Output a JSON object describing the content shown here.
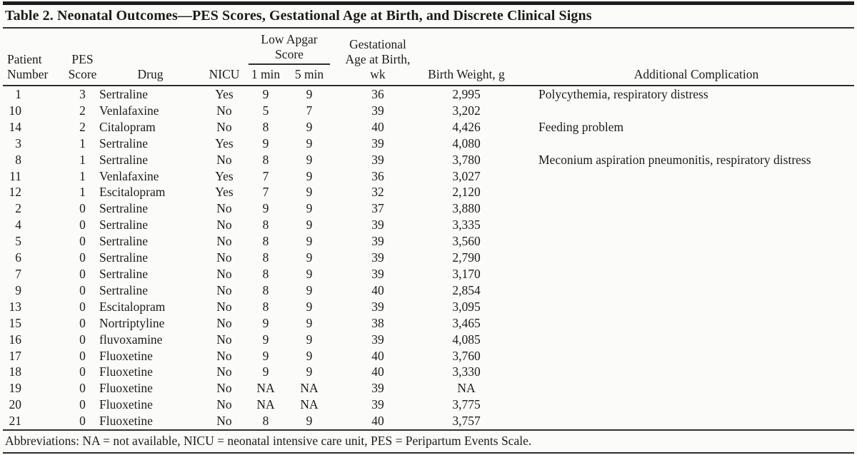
{
  "title": "Table 2. Neonatal Outcomes—PES Scores, Gestational Age at Birth, and Discrete Clinical Signs",
  "columns": {
    "patient": [
      "Patient",
      "Number"
    ],
    "pes": [
      "PES",
      "Score"
    ],
    "drug": "Drug",
    "nicu": "NICU",
    "apgar_group": [
      "Low Apgar",
      "Score"
    ],
    "apgar_1": "1 min",
    "apgar_5": "5 min",
    "ga": [
      "Gestational",
      "Age at Birth,",
      "wk"
    ],
    "weight": "Birth Weight, g",
    "complication": "Additional Complication"
  },
  "rows": [
    [
      "1",
      "3",
      "Sertraline",
      "Yes",
      "9",
      "9",
      "36",
      "2,995",
      "Polycythemia, respiratory distress"
    ],
    [
      "10",
      "2",
      "Venlafaxine",
      "No",
      "5",
      "7",
      "39",
      "3,202",
      ""
    ],
    [
      "14",
      "2",
      "Citalopram",
      "No",
      "8",
      "9",
      "40",
      "4,426",
      "Feeding problem"
    ],
    [
      "3",
      "1",
      "Sertraline",
      "Yes",
      "9",
      "9",
      "39",
      "4,080",
      ""
    ],
    [
      "8",
      "1",
      "Sertraline",
      "No",
      "8",
      "9",
      "39",
      "3,780",
      "Meconium aspiration pneumonitis, respiratory distress"
    ],
    [
      "11",
      "1",
      "Venlafaxine",
      "Yes",
      "7",
      "9",
      "36",
      "3,027",
      ""
    ],
    [
      "12",
      "1",
      "Escitalopram",
      "Yes",
      "7",
      "9",
      "32",
      "2,120",
      ""
    ],
    [
      "2",
      "0",
      "Sertraline",
      "No",
      "9",
      "9",
      "37",
      "3,880",
      ""
    ],
    [
      "4",
      "0",
      "Sertraline",
      "No",
      "8",
      "9",
      "39",
      "3,335",
      ""
    ],
    [
      "5",
      "0",
      "Sertraline",
      "No",
      "8",
      "9",
      "39",
      "3,560",
      ""
    ],
    [
      "6",
      "0",
      "Sertraline",
      "No",
      "8",
      "9",
      "39",
      "2,790",
      ""
    ],
    [
      "7",
      "0",
      "Sertraline",
      "No",
      "8",
      "9",
      "39",
      "3,170",
      ""
    ],
    [
      "9",
      "0",
      "Sertraline",
      "No",
      "8",
      "9",
      "40",
      "2,854",
      ""
    ],
    [
      "13",
      "0",
      "Escitalopram",
      "No",
      "8",
      "9",
      "39",
      "3,095",
      ""
    ],
    [
      "15",
      "0",
      "Nortriptyline",
      "No",
      "9",
      "9",
      "38",
      "3,465",
      ""
    ],
    [
      "16",
      "0",
      "fluvoxamine",
      "No",
      "9",
      "9",
      "39",
      "4,085",
      ""
    ],
    [
      "17",
      "0",
      "Fluoxetine",
      "No",
      "9",
      "9",
      "40",
      "3,760",
      ""
    ],
    [
      "18",
      "0",
      "Fluoxetine",
      "No",
      "9",
      "9",
      "40",
      "3,330",
      ""
    ],
    [
      "19",
      "0",
      "Fluoxetine",
      "No",
      "NA",
      "NA",
      "39",
      "NA",
      ""
    ],
    [
      "20",
      "0",
      "Fluoxetine",
      "No",
      "NA",
      "NA",
      "39",
      "3,775",
      ""
    ],
    [
      "21",
      "0",
      "Fluoxetine",
      "No",
      "8",
      "9",
      "40",
      "3,757",
      ""
    ]
  ],
  "cell_names": [
    "patient-number",
    "pes-score",
    "drug",
    "nicu",
    "apgar-1min",
    "apgar-5min",
    "gestational-age",
    "birth-weight",
    "complication"
  ],
  "footnote": "Abbreviations: NA = not available, NICU = neonatal intensive care unit, PES = Peripartum Events Scale.",
  "colors": {
    "text": "#1b1b1b",
    "rule": "#2e2e2e",
    "background": "#fbfbf9"
  }
}
